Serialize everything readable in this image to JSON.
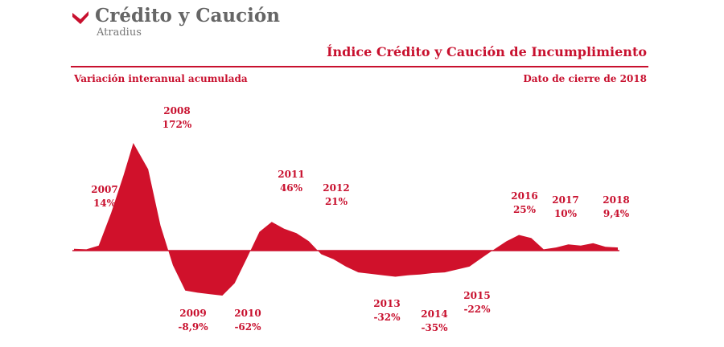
{
  "header": {
    "brand": "Crédito y Caución",
    "brand_sub": "Atradius",
    "title": "Índice Crédito y Caución de Incumplimiento",
    "subtitle": "Variación interanual acumulada",
    "note": "Dato de cierre de 2018"
  },
  "colors": {
    "accent": "#c8102e",
    "logo_text": "#666666"
  },
  "chart_data": {
    "type": "area",
    "title": "Índice Crédito y Caución de Incumplimiento",
    "subtitle": "Variación interanual acumulada",
    "xlabel": "",
    "ylabel": "",
    "grid": false,
    "legend": "none",
    "series_curve": {
      "x": [
        2007.0,
        2007.25,
        2007.5,
        2007.75,
        2008.0,
        2008.2,
        2008.5,
        2008.75,
        2009.0,
        2009.25,
        2009.5,
        2009.75,
        2010.0,
        2010.25,
        2010.5,
        2010.75,
        2011.0,
        2011.25,
        2011.5,
        2011.75,
        2012.0,
        2012.25,
        2012.5,
        2012.75,
        2013.0,
        2013.25,
        2013.5,
        2013.75,
        2014.0,
        2014.25,
        2014.5,
        2014.75,
        2015.0,
        2015.25,
        2015.5,
        2015.75,
        2016.0,
        2016.25,
        2016.5,
        2016.75,
        2017.0,
        2017.25,
        2017.5,
        2017.75,
        2018.0
      ],
      "y": [
        3,
        2,
        8,
        60,
        120,
        172,
        130,
        40,
        -20,
        -55,
        -58,
        -60,
        -62,
        -45,
        -10,
        30,
        46,
        35,
        28,
        15,
        -5,
        -12,
        -22,
        -30,
        -32,
        -34,
        -36,
        -34,
        -33,
        -31,
        -30,
        -26,
        -22,
        -10,
        2,
        15,
        25,
        20,
        2,
        5,
        10,
        8,
        12,
        6,
        5
      ]
    },
    "labels": [
      {
        "year": "2007",
        "value": "14%"
      },
      {
        "year": "2008",
        "value": "172%"
      },
      {
        "year": "2009",
        "value": "-8,9%"
      },
      {
        "year": "2010",
        "value": "-62%"
      },
      {
        "year": "2011",
        "value": "46%"
      },
      {
        "year": "2012",
        "value": "21%"
      },
      {
        "year": "2013",
        "value": "-32%"
      },
      {
        "year": "2014",
        "value": "-35%"
      },
      {
        "year": "2015",
        "value": "-22%"
      },
      {
        "year": "2016",
        "value": "25%"
      },
      {
        "year": "2017",
        "value": "10%"
      },
      {
        "year": "2018",
        "value": "9,4%"
      }
    ]
  }
}
